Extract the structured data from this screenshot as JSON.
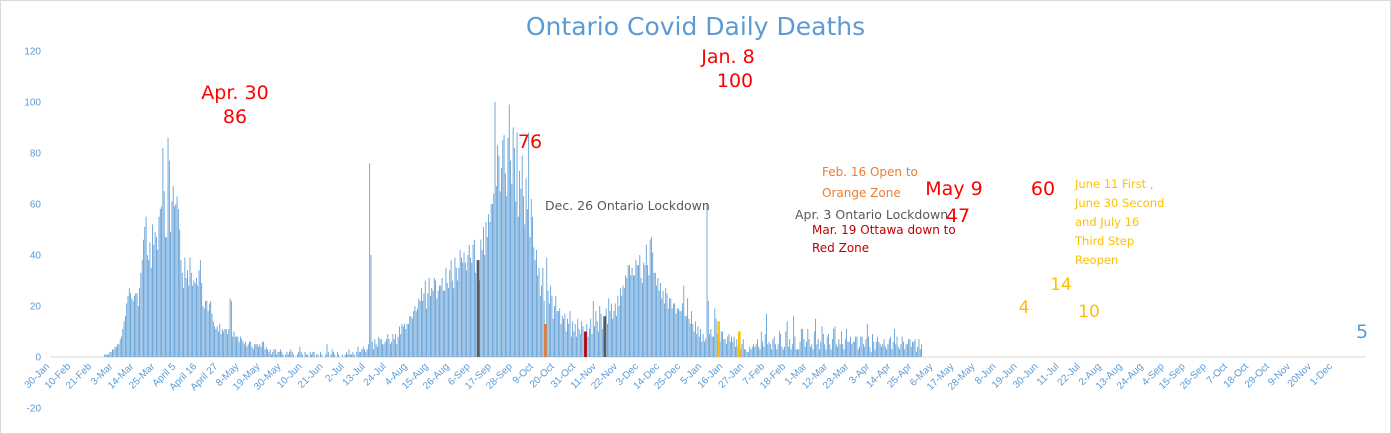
{
  "chart_data": {
    "type": "bar",
    "title": "Ontario Covid Daily Deaths",
    "xlabel": "",
    "ylabel": "",
    "ylim": [
      -20,
      120
    ],
    "yticks": [
      120,
      100,
      80,
      60,
      40,
      20,
      0,
      -20
    ],
    "grid": false,
    "legend": "none",
    "start_date": "2020-01-30",
    "x_tick_labels": [
      "30-Jan",
      "10-Feb",
      "21-Feb",
      "3-Mar",
      "14-Mar",
      "25-Mar",
      "April 5",
      "April 16",
      "April 27",
      "8-May",
      "19-May",
      "30-May",
      "10-Jun",
      "21-Jun",
      "2-Jul",
      "13-Jul",
      "24-Jul",
      "4-Aug",
      "15-Aug",
      "26-Aug",
      "6-Sep",
      "17-Sep",
      "28-Sep",
      "9-Oct",
      "20-Oct",
      "31-Oct",
      "11-Nov",
      "22-Nov",
      "3-Dec",
      "14-Dec",
      "25-Dec",
      "5-Jan",
      "16-Jan",
      "27-Jan",
      "7-Feb",
      "18-Feb",
      "1-Mar",
      "12-Mar",
      "23-Mar",
      "3-Apr",
      "14-Apr",
      "25-Apr",
      "6-May",
      "17-May",
      "28-May",
      "8-Jun",
      "19-Jun",
      "30-Jun",
      "11-Jul",
      "22-Jul",
      "2-Aug",
      "13-Aug",
      "24-Aug",
      "4-Sep",
      "15-Sep",
      "26-Sep",
      "7-Oct",
      "18-Oct",
      "29-Oct",
      "9-Nov",
      "20Nov",
      "1-Dec"
    ],
    "key_points": [
      {
        "date": "2020-04-30",
        "value": 86
      },
      {
        "date": "2020-10-03",
        "value": 76
      },
      {
        "date": "2021-01-08",
        "value": 100
      },
      {
        "date": "2021-05-09",
        "value": 47
      },
      {
        "date": "2021-06-21",
        "value": 60
      },
      {
        "date": "2021-12-04",
        "value": 5
      }
    ],
    "event_markers": [
      {
        "date": "2020-12-26",
        "value": 38,
        "color": "#595959"
      },
      {
        "date": "2021-02-16",
        "value": 13,
        "color": "#ed7d31"
      },
      {
        "date": "2021-03-19",
        "value": 10,
        "color": "#c00000"
      },
      {
        "date": "2021-04-03",
        "value": 16,
        "color": "#595959"
      },
      {
        "date": "2021-06-30",
        "value": 14,
        "color": "#ffc000"
      },
      {
        "date": "2021-07-16",
        "value": 10,
        "color": "#ffc000"
      }
    ],
    "annotations": [
      {
        "text": "Apr. 30",
        "color": "#ff0000"
      },
      {
        "text": "86",
        "color": "#ff0000"
      },
      {
        "text": "76",
        "color": "#ff0000"
      },
      {
        "text": "Dec. 26 Ontario Lockdown",
        "color": "#595959"
      },
      {
        "text": "Jan. 8",
        "color": "#ff0000"
      },
      {
        "text": "100",
        "color": "#ff0000"
      },
      {
        "text": "Feb. 16 Open to",
        "color": "#ed7d31"
      },
      {
        "text": "Orange Zone",
        "color": "#ed7d31"
      },
      {
        "text": "Apr. 3 Ontario Lockdown",
        "color": "#595959"
      },
      {
        "text": "Mar. 19 Ottawa down to",
        "color": "#c00000"
      },
      {
        "text": "Red Zone",
        "color": "#c00000"
      },
      {
        "text": "May 9",
        "color": "#ff0000"
      },
      {
        "text": "47",
        "color": "#ff0000"
      },
      {
        "text": "60",
        "color": "#ff0000"
      },
      {
        "text": "4",
        "color": "#ffc000"
      },
      {
        "text": "14",
        "color": "#ffc000"
      },
      {
        "text": "10",
        "color": "#ffc000"
      },
      {
        "text": "June 11 First ,",
        "color": "#ffc000"
      },
      {
        "text": "June 30 Second",
        "color": "#ffc000"
      },
      {
        "text": "and July 16",
        "color": "#ffc000"
      },
      {
        "text": "Third Step",
        "color": "#ffc000"
      },
      {
        "text": "Reopen",
        "color": "#ffc000"
      },
      {
        "text": "5",
        "color": "#5b9bd5"
      }
    ],
    "series": [
      {
        "color": "#5b9bd5",
        "segments": [
          {
            "from": "2020-01-30",
            "to": "2020-03-10",
            "values": [
              0
            ]
          },
          {
            "from": "2020-03-10",
            "to": "2020-03-25",
            "values": [
              0,
              1,
              1,
              2,
              3,
              4,
              5,
              8
            ]
          },
          {
            "from": "2020-03-25",
            "to": "2020-04-10",
            "values": [
              8,
              12,
              16,
              22,
              27,
              25,
              21,
              24,
              26,
              20,
              31,
              38
            ]
          },
          {
            "from": "2020-04-10",
            "to": "2020-04-25",
            "values": [
              38,
              46,
              51,
              55,
              40,
              38,
              45,
              35,
              52,
              44,
              49,
              47,
              42,
              55,
              58,
              59
            ]
          },
          {
            "from": "2020-04-25",
            "to": "2020-05-10",
            "values": [
              59,
              86,
              58,
              40,
              55,
              84,
              48,
              62,
              68,
              55,
              65,
              60,
              52,
              38
            ]
          },
          {
            "from": "2020-05-10",
            "to": "2020-06-10",
            "values": [
              38,
              33,
              27,
              40,
              30,
              35,
              26,
              43,
              29,
              27,
              31,
              28,
              33,
              25,
              41,
              35,
              22,
              18,
              20,
              25,
              17,
              20,
              24,
              18,
              14,
              12,
              11,
              12,
              10,
              13,
              9
            ]
          },
          {
            "from": "2020-06-10",
            "to": "2020-07-10",
            "values": [
              9,
              11,
              10,
              12,
              9,
              11,
              31,
              8,
              10,
              7,
              9,
              6,
              8,
              7,
              5,
              6,
              4,
              5,
              7,
              4,
              3,
              6,
              5,
              4,
              5
            ]
          },
          {
            "from": "2020-07-10",
            "to": "2020-09-25",
            "values": [
              5,
              4,
              7,
              3,
              4,
              2,
              3,
              1,
              2,
              4,
              1,
              2,
              3,
              2,
              1,
              0,
              2,
              1,
              3,
              2,
              1,
              0,
              1,
              2,
              4,
              1,
              0,
              2,
              1,
              0,
              2,
              1,
              3,
              0,
              1,
              0,
              2,
              1,
              0,
              1,
              6,
              0,
              1,
              3,
              1,
              0,
              2,
              1,
              0,
              1,
              0,
              2,
              1,
              3,
              0,
              2,
              1,
              0,
              4,
              2
            ]
          },
          {
            "from": "2020-09-26",
            "to": "2020-10-02",
            "values": [
              2,
              3,
              4,
              2,
              3,
              5
            ]
          },
          {
            "from": "2020-10-03",
            "to": "2020-10-04",
            "values": [
              76,
              40
            ]
          },
          {
            "from": "2020-10-05",
            "to": "2020-11-15",
            "values": [
              6,
              3,
              7,
              5,
              4,
              9,
              6,
              8,
              3,
              7,
              5,
              9,
              8,
              6,
              4,
              10,
              7,
              9,
              5,
              8,
              12,
              9,
              14,
              11,
              13,
              10,
              15,
              12,
              18,
              14,
              16,
              21,
              19,
              17,
              24,
              20,
              28,
              22,
              25,
              30
            ]
          },
          {
            "from": "2020-11-15",
            "to": "2020-12-25",
            "values": [
              30,
              18,
              26,
              32,
              22,
              29,
              24,
              35,
              27,
              20,
              31,
              25,
              33,
              28,
              23,
              36,
              29,
              26,
              34,
              38,
              30,
              27,
              41,
              33,
              29,
              37,
              44,
              35,
              39,
              42,
              31,
              38,
              45,
              40,
              36,
              43,
              47,
              33,
              38
            ]
          },
          {
            "from": "2020-12-27",
            "to": "2021-01-20",
            "values": [
              30,
              47,
              41,
              52,
              38,
              57,
              44,
              61,
              49,
              66,
              55,
              72,
              58,
              78,
              89,
              63,
              70,
              83,
              91,
              74,
              60,
              85,
              100,
              77
            ]
          },
          {
            "from": "2021-01-20",
            "to": "2021-02-08",
            "values": [
              77,
              68,
              90,
              82,
              61,
              88,
              55,
              73,
              66,
              79,
              63,
              52,
              70,
              58,
              88,
              47,
              62,
              55,
              43,
              50
            ]
          },
          {
            "from": "2021-02-08",
            "to": "2021-03-10",
            "values": [
              38,
              42,
              31,
              35,
              22,
              29,
              37,
              18,
              26,
              45,
              16,
              24,
              30,
              19,
              12,
              27,
              21,
              15,
              23,
              11,
              18,
              13,
              20,
              9,
              16,
              12,
              19,
              8,
              14,
              10
            ]
          },
          {
            "from": "2021-03-10",
            "to": "2021-04-10",
            "values": [
              10,
              13,
              8,
              15,
              11,
              9,
              14,
              12,
              10,
              16,
              13,
              8,
              11,
              15,
              9,
              22,
              12,
              18,
              14,
              10,
              20,
              17,
              11,
              16,
              22,
              19,
              13,
              23,
              18,
              21,
              15,
              12
            ]
          },
          {
            "from": "2021-04-10",
            "to": "2021-05-12",
            "values": [
              18,
              21,
              16,
              25,
              19,
              28,
              23,
              30,
              26,
              35,
              29,
              40,
              33,
              31,
              38,
              27,
              36,
              41,
              30,
              44,
              34,
              25,
              39,
              32,
              46,
              37,
              29,
              47,
              35,
              41,
              33,
              24
            ]
          },
          {
            "from": "2021-05-12",
            "to": "2021-06-15",
            "values": [
              33,
              28,
              31,
              25,
              30,
              22,
              27,
              20,
              29,
              23,
              18,
              26,
              21,
              17,
              24,
              19,
              15,
              22,
              16,
              20,
              14,
              33,
              18,
              12,
              25,
              16,
              11,
              19,
              13,
              10,
              14,
              9,
              12,
              8
            ]
          },
          {
            "from": "2021-06-15",
            "to": "2021-07-15",
            "values": [
              8,
              11,
              6,
              9,
              5,
              7,
              60,
              10,
              8,
              13,
              6,
              9,
              25,
              7,
              11,
              5,
              8,
              12,
              6,
              9,
              4,
              7,
              10,
              5,
              8,
              6,
              9,
              4,
              7,
              5
            ]
          },
          {
            "from": "2021-07-15",
            "to": "2021-12-04",
            "values": [
              4,
              6,
              3,
              5,
              7,
              2,
              4,
              1,
              3,
              5,
              2,
              6,
              4,
              3,
              8,
              5,
              2,
              11,
              6,
              4,
              9,
              18,
              3,
              7,
              5,
              2,
              10,
              6,
              4,
              3,
              8,
              12,
              5,
              3,
              2,
              9,
              16,
              4,
              7,
              3,
              5,
              18,
              6,
              2,
              4,
              3,
              7,
              14,
              9,
              5,
              3,
              12,
              8,
              4,
              6,
              2,
              10,
              15,
              5,
              7,
              3,
              6,
              13,
              8,
              4,
              3,
              11,
              7,
              2,
              5,
              9,
              14,
              6,
              3,
              8,
              4,
              10,
              5,
              3,
              7,
              12,
              4,
              6,
              9,
              3,
              8,
              5,
              11,
              4,
              2,
              7,
              9,
              5,
              3,
              6,
              13,
              8,
              4,
              2,
              10,
              5,
              3,
              7,
              9,
              4,
              6,
              3,
              8,
              5,
              2,
              4,
              7,
              9,
              3,
              6,
              11,
              5,
              8,
              4,
              3,
              6,
              9,
              5,
              2,
              7,
              4,
              10,
              3,
              6,
              5,
              8,
              2,
              4,
              7,
              3,
              5
            ]
          }
        ]
      }
    ]
  }
}
